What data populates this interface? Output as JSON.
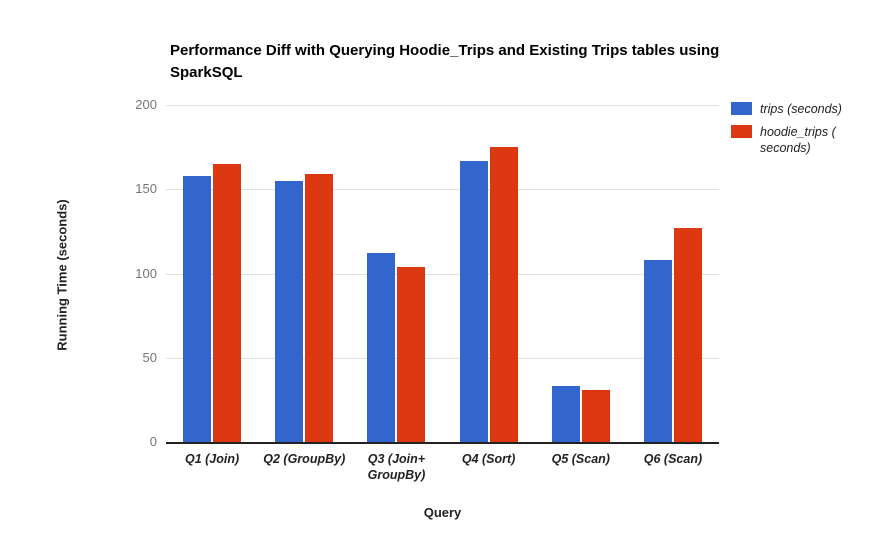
{
  "chart": {
    "title": "Performance Diff with Querying Hoodie_Trips and Existing Trips tables using SparkSQL",
    "y_axis_title": "Running Time (seconds)",
    "x_axis_title": "Query"
  },
  "legend": {
    "items": [
      {
        "label": "trips (seconds)",
        "color": "#3366cc"
      },
      {
        "label": "hoodie_trips (\nseconds)",
        "color": "#dc3912"
      }
    ]
  },
  "chart_data": {
    "type": "bar",
    "title": "Performance Diff with Querying Hoodie_Trips and Existing Trips tables using SparkSQL",
    "xlabel": "Query",
    "ylabel": "Running Time (seconds)",
    "categories": [
      "Q1 (Join)",
      "Q2 (GroupBy)",
      "Q3 (Join+\nGroupBy)",
      "Q4 (Sort)",
      "Q5 (Scan)",
      "Q6 (Scan)"
    ],
    "series": [
      {
        "name": "trips (seconds)",
        "color": "#3366cc",
        "values": [
          158,
          155,
          112,
          167,
          33,
          108
        ]
      },
      {
        "name": "hoodie_trips (seconds)",
        "color": "#dc3912",
        "values": [
          165,
          159,
          104,
          175,
          31,
          127
        ]
      }
    ],
    "ylim": [
      0,
      200
    ],
    "yticks": [
      0,
      50,
      100,
      150,
      200
    ],
    "grid": true,
    "legend_position": "right"
  }
}
